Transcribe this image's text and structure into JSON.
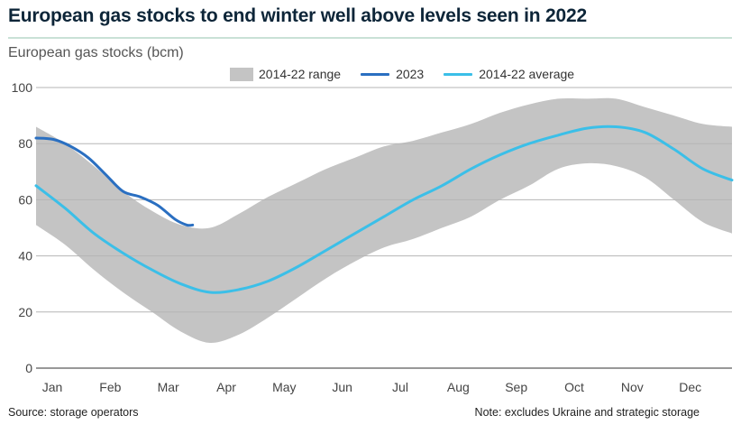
{
  "header": {
    "title": "European gas stocks to end winter well above levels seen in 2022",
    "subtitle": "European gas stocks (bcm)"
  },
  "footer": {
    "source": "Source: storage operators",
    "note": "Note: excludes Ukraine and strategic storage"
  },
  "chart_data": {
    "type": "line",
    "title": "European gas stocks to end winter well above levels seen in 2022",
    "ylabel": "European gas stocks (bcm)",
    "xlabel": "",
    "ylim": [
      0,
      100
    ],
    "yticks": [
      0,
      20,
      40,
      60,
      80,
      100
    ],
    "xlim": [
      0,
      12
    ],
    "month_labels": [
      "Jan",
      "Feb",
      "Mar",
      "Apr",
      "May",
      "Jun",
      "Jul",
      "Aug",
      "Sep",
      "Oct",
      "Nov",
      "Dec"
    ],
    "grid": true,
    "legend_position": "top",
    "colors": {
      "range": "#c4c4c4",
      "2023": "#2a6fc1",
      "average": "#3bbfe8"
    },
    "range": {
      "name": "2014-22 range",
      "x": [
        0,
        0.5,
        1.0,
        1.5,
        2.0,
        2.5,
        3.0,
        3.5,
        4.0,
        4.5,
        5.0,
        5.5,
        6.0,
        6.5,
        7.0,
        7.5,
        8.0,
        8.5,
        9.0,
        9.5,
        10.0,
        10.5,
        11.0,
        11.5,
        12.0
      ],
      "upper": [
        86,
        80,
        72,
        63,
        56,
        51,
        50,
        55,
        61,
        66,
        71,
        75,
        79,
        81,
        84,
        87,
        91,
        94,
        96,
        96,
        96,
        93,
        90,
        87,
        86
      ],
      "lower": [
        51,
        44,
        35,
        27,
        20,
        13,
        9,
        12,
        18,
        25,
        32,
        38,
        43,
        46,
        50,
        54,
        60,
        65,
        71,
        73,
        72,
        68,
        60,
        52,
        48
      ]
    },
    "series": [
      {
        "name": "2023",
        "x": [
          0,
          0.3,
          0.6,
          0.9,
          1.2,
          1.5,
          1.8,
          2.1,
          2.4,
          2.6,
          2.7
        ],
        "values": [
          82,
          81.5,
          79,
          75,
          69,
          63,
          61,
          58,
          53,
          51,
          51
        ]
      },
      {
        "name": "2014-22 average",
        "x": [
          0,
          0.5,
          1.0,
          1.5,
          2.0,
          2.5,
          3.0,
          3.5,
          4.0,
          4.5,
          5.0,
          5.5,
          6.0,
          6.5,
          7.0,
          7.5,
          8.0,
          8.5,
          9.0,
          9.5,
          10.0,
          10.5,
          11.0,
          11.5,
          12.0
        ],
        "values": [
          65,
          57,
          48,
          41,
          35,
          30,
          27,
          28,
          31,
          36,
          42,
          48,
          54,
          60,
          65,
          71,
          76,
          80,
          83,
          85.5,
          86,
          84,
          78,
          71,
          67
        ]
      }
    ]
  }
}
